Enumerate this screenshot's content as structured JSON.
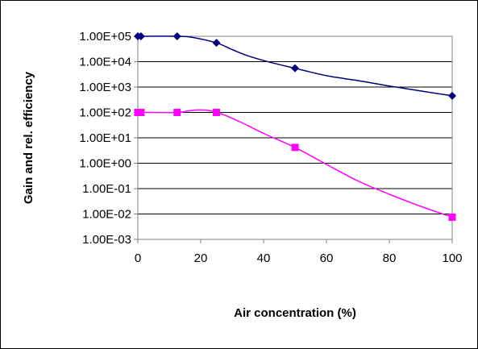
{
  "chart_data": {
    "type": "line",
    "title": "",
    "xlabel": "Air concentration (%)",
    "ylabel": "Gain and rel. efficiency",
    "xlim": [
      0,
      100
    ],
    "ylim": [
      0.001,
      100000
    ],
    "y_scale": "log",
    "x_ticks": [
      0,
      20,
      40,
      60,
      80,
      100
    ],
    "x_tick_labels": [
      "0",
      "20",
      "40",
      "60",
      "80",
      "100"
    ],
    "y_ticks": [
      100000,
      10000,
      1000,
      100,
      10,
      1,
      0.1,
      0.01,
      0.001
    ],
    "y_tick_labels": [
      "1.00E+05",
      "1.00E+04",
      "1.00E+03",
      "1.00E+02",
      "1.00E+01",
      "1.00E+00",
      "1.00E-01",
      "1.00E-02",
      "1.00E-03"
    ],
    "grid": "horizontal",
    "legend": "none",
    "series": [
      {
        "color": "#000080",
        "marker": "diamond",
        "x": [
          0,
          1,
          12.5,
          25,
          50,
          100
        ],
        "y": [
          100000,
          100000,
          100000,
          55000,
          5500,
          450
        ],
        "curve": [
          [
            0,
            100000
          ],
          [
            12.5,
            100000
          ],
          [
            17,
            92000
          ],
          [
            25,
            55000
          ],
          [
            30,
            30000
          ],
          [
            35,
            17000
          ],
          [
            42,
            9500
          ],
          [
            50,
            5500
          ],
          [
            60,
            2800
          ],
          [
            70,
            1800
          ],
          [
            80,
            1100
          ],
          [
            90,
            700
          ],
          [
            100,
            450
          ]
        ]
      },
      {
        "color": "#FF00FF",
        "marker": "square",
        "x": [
          0,
          1,
          12.5,
          25,
          50,
          100
        ],
        "y": [
          100,
          100,
          100,
          100,
          4.2,
          0.0075
        ],
        "curve": [
          [
            0,
            100
          ],
          [
            12.5,
            100
          ],
          [
            16,
            115
          ],
          [
            19,
            125
          ],
          [
            22,
            122
          ],
          [
            25,
            100
          ],
          [
            28,
            75
          ],
          [
            33,
            40
          ],
          [
            40,
            15
          ],
          [
            50,
            4.2
          ],
          [
            60,
            0.9
          ],
          [
            70,
            0.2
          ],
          [
            80,
            0.06
          ],
          [
            90,
            0.02
          ],
          [
            100,
            0.0075
          ]
        ]
      }
    ]
  }
}
